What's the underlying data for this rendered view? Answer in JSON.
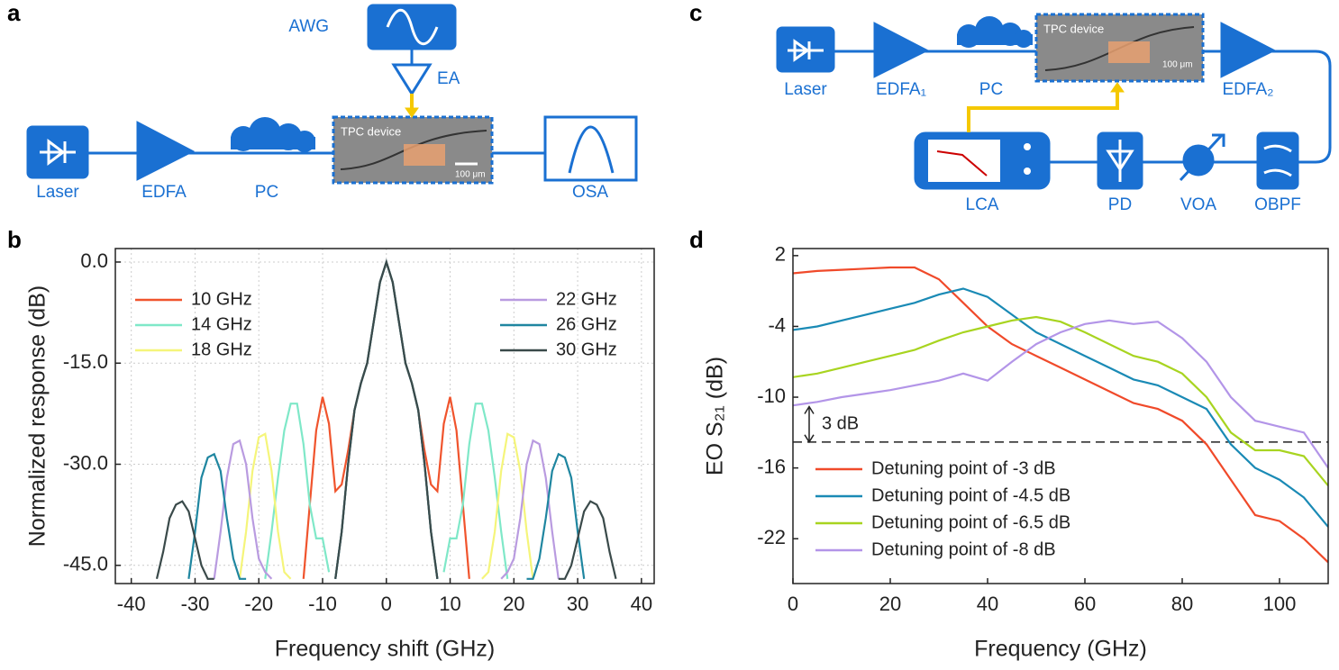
{
  "panels": {
    "a": "a",
    "b": "b",
    "c": "c",
    "d": "d"
  },
  "diagram_a": {
    "awg": "AWG",
    "ea": "EA",
    "device": "TPC device",
    "scale": "100 μm",
    "laser": "Laser",
    "edfa": "EDFA",
    "pc": "PC",
    "osa": "OSA"
  },
  "diagram_c": {
    "laser": "Laser",
    "edfa1": "EDFA₁",
    "pc": "PC",
    "device": "TPC device",
    "scale": "100 μm",
    "edfa2": "EDFA₂",
    "lca": "LCA",
    "pd": "PD",
    "voa": "VOA",
    "obpf": "OBPF"
  },
  "chart_data": [
    {
      "type": "line",
      "x_label": "Frequency shift (GHz)",
      "y_label": "Normalized response (dB)",
      "grid": true,
      "xlim": [
        -42.5,
        42
      ],
      "ylim": [
        -47.7,
        2
      ],
      "xticks": [
        -40,
        -30,
        -20,
        -10,
        0,
        10,
        20,
        30,
        40
      ],
      "yticks": [
        {
          "value": 0,
          "label": "0.0"
        },
        {
          "value": -15,
          "label": "-15.0"
        },
        {
          "value": -30,
          "label": "-30.0"
        },
        {
          "value": -45,
          "label": "-45.0"
        }
      ],
      "series": [
        {
          "name": "10 GHz",
          "color": "#f0542d",
          "x": [
            -13,
            -12,
            -11,
            -10,
            -9,
            -8,
            -7,
            -6,
            -5,
            -4,
            -3,
            -2,
            -1,
            0,
            1,
            2,
            3,
            4,
            5,
            6,
            7,
            8,
            9,
            10,
            11,
            12,
            13
          ],
          "values": [
            -47,
            -36,
            -25,
            -20,
            -24,
            -34,
            -33,
            -28,
            -22,
            -18,
            -15,
            -9,
            -3,
            0,
            -3,
            -9,
            -15,
            -18,
            -22,
            -28,
            -33,
            -34,
            -24,
            -20,
            -25,
            -36,
            -47
          ]
        },
        {
          "name": "14 GHz",
          "color": "#7fe8c8",
          "x": [
            -19,
            -18,
            -17,
            -16,
            -15,
            -14,
            -13,
            -12,
            -11,
            -10,
            -9,
            -8.5,
            -8,
            -7,
            -6,
            -5,
            -4,
            -3,
            -2,
            -1,
            0,
            1,
            2,
            3,
            4,
            5,
            6,
            7,
            8,
            8.5,
            9,
            10,
            11,
            12,
            13,
            14,
            15,
            16,
            17,
            18,
            19
          ],
          "values": [
            -47,
            -40,
            -32,
            -25,
            -21,
            -21,
            -27,
            -36,
            -41,
            -41,
            -46,
            null,
            -47,
            -40,
            -30,
            -22,
            -18,
            -15,
            -9,
            -3,
            0,
            -3,
            -9,
            -15,
            -18,
            -22,
            -30,
            -40,
            -47,
            null,
            -46,
            -41,
            -41,
            -36,
            -27,
            -21,
            -21,
            -25,
            -32,
            -40,
            -47
          ]
        },
        {
          "name": "18 GHz",
          "color": "#f5f57a",
          "x": [
            -23,
            -22,
            -21,
            -20,
            -19,
            -18,
            -17,
            -16,
            -15,
            -12,
            -8,
            -7,
            -6,
            -5,
            -4,
            -3,
            -2,
            -1,
            0,
            1,
            2,
            3,
            4,
            5,
            6,
            7,
            8,
            12,
            15,
            16,
            17,
            18,
            19,
            20,
            21,
            22,
            23
          ],
          "values": [
            -47,
            -40,
            -31,
            -26,
            -25.5,
            -31,
            -40,
            -46,
            -47,
            null,
            -47,
            -40,
            -30,
            -22,
            -18,
            -15,
            -9,
            -3,
            0,
            -3,
            -9,
            -15,
            -18,
            -22,
            -30,
            -40,
            -47,
            null,
            -47,
            -46,
            -40,
            -31,
            -25.5,
            -26,
            -31,
            -40,
            -47
          ]
        },
        {
          "name": "22 GHz",
          "color": "#b99be0",
          "x": [
            -27,
            -26,
            -25,
            -24,
            -23,
            -22,
            -21,
            -20,
            -19,
            -18,
            -12,
            -8,
            -7,
            -6,
            -5,
            -4,
            -3,
            -2,
            -1,
            0,
            1,
            2,
            3,
            4,
            5,
            6,
            7,
            8,
            12,
            18,
            19,
            20,
            21,
            22,
            23,
            24,
            25,
            26,
            27
          ],
          "values": [
            -47,
            -40,
            -32,
            -27,
            -26.5,
            -30,
            -38,
            -44,
            -46,
            -47,
            null,
            -47,
            -40,
            -30,
            -22,
            -18,
            -15,
            -9,
            -3,
            0,
            -3,
            -9,
            -15,
            -18,
            -22,
            -30,
            -40,
            -47,
            null,
            -47,
            -46,
            -44,
            -38,
            -30,
            -26.5,
            -27,
            -32,
            -40,
            -47
          ]
        },
        {
          "name": "26 GHz",
          "color": "#1f86a0",
          "x": [
            -31,
            -30,
            -29,
            -28,
            -27,
            -26,
            -25,
            -24,
            -23,
            -22,
            -12,
            -8,
            -7,
            -6,
            -5,
            -4,
            -3,
            -2,
            -1,
            0,
            1,
            2,
            3,
            4,
            5,
            6,
            7,
            8,
            12,
            22,
            23,
            24,
            25,
            26,
            27,
            28,
            29,
            30,
            31
          ],
          "values": [
            -47,
            -40,
            -32,
            -29,
            -28.5,
            -31,
            -38,
            -44,
            -47,
            -47,
            null,
            -47,
            -40,
            -30,
            -22,
            -18,
            -15,
            -9,
            -3,
            0,
            -3,
            -9,
            -15,
            -18,
            -22,
            -30,
            -40,
            -47,
            null,
            -47,
            -47,
            -44,
            -38,
            -31,
            -28.5,
            -29,
            -32,
            -40,
            -47
          ]
        },
        {
          "name": "30 GHz",
          "color": "#3a4a4a",
          "x": [
            -36,
            -35,
            -34,
            -33,
            -32,
            -31,
            -30,
            -29,
            -28,
            -27,
            -12,
            -8,
            -7,
            -6,
            -5,
            -4,
            -3,
            -2,
            -1,
            0,
            1,
            2,
            3,
            4,
            5,
            6,
            7,
            8,
            12,
            27,
            28,
            29,
            30,
            31,
            32,
            33,
            34,
            35,
            36
          ],
          "values": [
            -47,
            -43,
            -38,
            -36,
            -35.5,
            -37,
            -41,
            -45,
            -47,
            -47,
            null,
            -47,
            -40,
            -30,
            -22,
            -18,
            -15,
            -9,
            -3,
            0,
            -3,
            -9,
            -15,
            -18,
            -22,
            -30,
            -40,
            -47,
            null,
            -47,
            -47,
            -45,
            -41,
            -37,
            -35.5,
            -36,
            -38,
            -43,
            -47
          ]
        }
      ]
    },
    {
      "type": "line",
      "x_label": "Frequency (GHz)",
      "y_label": "EO S₂₁ (dB)",
      "grid": false,
      "xlim": [
        0,
        110
      ],
      "ylim": [
        -25.8,
        2.6
      ],
      "xticks": [
        0,
        20,
        40,
        60,
        80,
        100
      ],
      "yticks": [
        2,
        -4,
        -10,
        -16,
        -22
      ],
      "reference_line": -13.8,
      "arrow_span": [
        -10.8,
        -13.8
      ],
      "annotation": "3 dB",
      "x": [
        0,
        5,
        10,
        15,
        20,
        25,
        30,
        35,
        40,
        45,
        50,
        55,
        60,
        65,
        70,
        75,
        80,
        85,
        90,
        95,
        100,
        105,
        110
      ],
      "series": [
        {
          "name": "Detuning point of -3 dB",
          "color": "#f04a2a",
          "values": [
            0.5,
            0.7,
            0.8,
            0.9,
            1,
            1,
            0,
            -2,
            -4,
            -5.5,
            -6.5,
            -7.5,
            -8.5,
            -9.5,
            -10.5,
            -11,
            -12,
            -14,
            -17,
            -20,
            -20.5,
            -22,
            -24
          ]
        },
        {
          "name": "Detuning point of -4.5 dB",
          "color": "#1a8ab5",
          "values": [
            -4.3,
            -4,
            -3.5,
            -3,
            -2.5,
            -2,
            -1.3,
            -0.8,
            -1.5,
            -3,
            -4.5,
            -5.5,
            -6.5,
            -7.5,
            -8.5,
            -9,
            -10,
            -11,
            -14,
            -16,
            -17,
            -18.5,
            -21
          ]
        },
        {
          "name": "Detuning point of -6.5 dB",
          "color": "#a8d420",
          "values": [
            -8.3,
            -8,
            -7.5,
            -7,
            -6.5,
            -6,
            -5.2,
            -4.5,
            -4,
            -3.5,
            -3.2,
            -3.6,
            -4.5,
            -5.5,
            -6.5,
            -7,
            -8,
            -10,
            -13,
            -14.5,
            -14.5,
            -15,
            -17.5
          ]
        },
        {
          "name": "Detuning point of -8 dB",
          "color": "#b395e8",
          "values": [
            -10.7,
            -10.4,
            -10,
            -9.7,
            -9.4,
            -9,
            -8.6,
            -8,
            -8.6,
            -7,
            -5.5,
            -4.5,
            -3.8,
            -3.5,
            -3.8,
            -3.6,
            -5,
            -7,
            -10,
            -12,
            -12.5,
            -13,
            -16
          ]
        }
      ]
    }
  ]
}
